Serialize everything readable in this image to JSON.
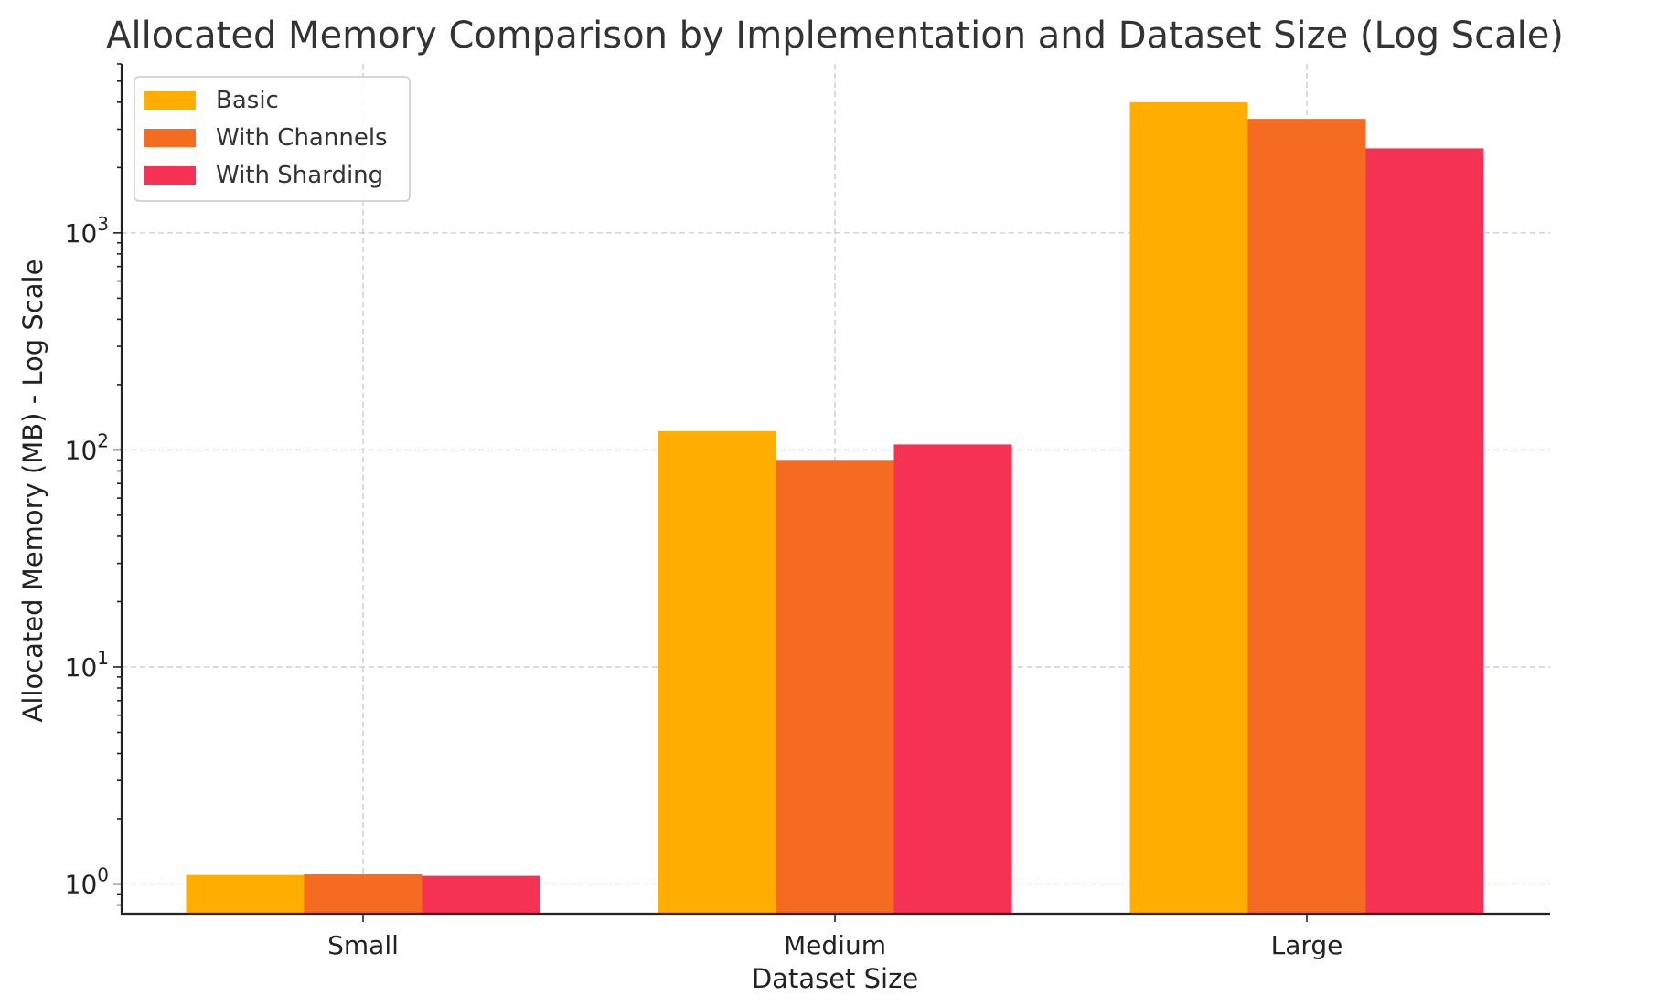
{
  "chart_data": {
    "type": "bar",
    "title": "Allocated Memory Comparison by Implementation and Dataset Size (Log Scale)",
    "xlabel": "Dataset Size",
    "ylabel": "Allocated Memory (MB) - Log Scale",
    "yscale": "log",
    "ylim": [
      0.73,
      6000
    ],
    "grid": true,
    "legend_position": "top-left",
    "categories": [
      "Small",
      "Medium",
      "Large"
    ],
    "y_ticks": [
      {
        "value": 1,
        "base": "10",
        "exp": "0"
      },
      {
        "value": 10,
        "base": "10",
        "exp": "1"
      },
      {
        "value": 100,
        "base": "10",
        "exp": "2"
      },
      {
        "value": 1000,
        "base": "10",
        "exp": "3"
      }
    ],
    "series": [
      {
        "name": "Basic",
        "color": "#ffae00",
        "values": [
          1.1,
          122,
          4000
        ]
      },
      {
        "name": "With Channels",
        "color": "#f46b21",
        "values": [
          1.11,
          90,
          3350
        ]
      },
      {
        "name": "With Sharding",
        "color": "#f53253",
        "values": [
          1.09,
          106,
          2450
        ]
      }
    ]
  }
}
